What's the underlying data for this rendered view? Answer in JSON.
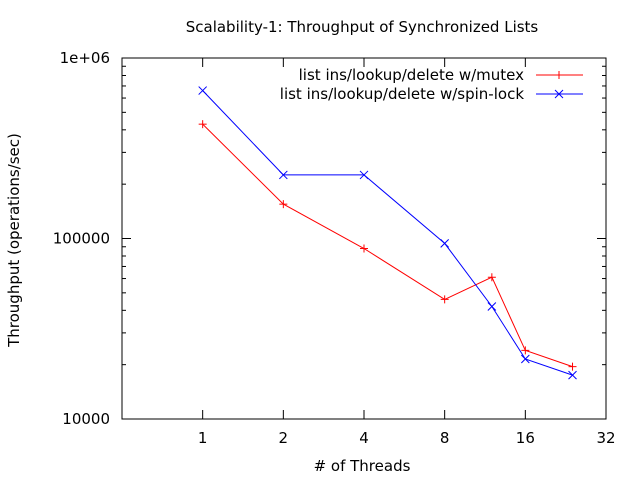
{
  "chart_data": {
    "type": "line",
    "title": "Scalability-1: Throughput of Synchronized Lists",
    "xlabel": "# of Threads",
    "ylabel": "Throughput (operations/sec)",
    "x_scale": "log2",
    "y_scale": "log10",
    "xlim": [
      0.5,
      32
    ],
    "ylim": [
      10000,
      1000000
    ],
    "x_ticks": [
      1,
      2,
      4,
      8,
      16,
      32
    ],
    "x_tick_labels": [
      "1",
      "2",
      "4",
      "8",
      "16",
      "32"
    ],
    "y_ticks": [
      10000,
      100000,
      1000000
    ],
    "y_tick_labels": [
      "10000",
      "100000",
      "1e+06"
    ],
    "grid": false,
    "legend_position": "top-right",
    "series": [
      {
        "name": "list ins/lookup/delete w/mutex",
        "color": "#ff0000",
        "marker": "plus",
        "x": [
          1,
          2,
          4,
          8,
          12,
          16,
          24
        ],
        "y": [
          430000,
          155000,
          88000,
          46000,
          61000,
          24000,
          19500
        ]
      },
      {
        "name": "list ins/lookup/delete w/spin-lock",
        "color": "#0000ff",
        "marker": "cross",
        "x": [
          1,
          2,
          4,
          8,
          12,
          16,
          24
        ],
        "y": [
          660000,
          225000,
          225000,
          94000,
          42000,
          21500,
          17500
        ]
      }
    ]
  }
}
